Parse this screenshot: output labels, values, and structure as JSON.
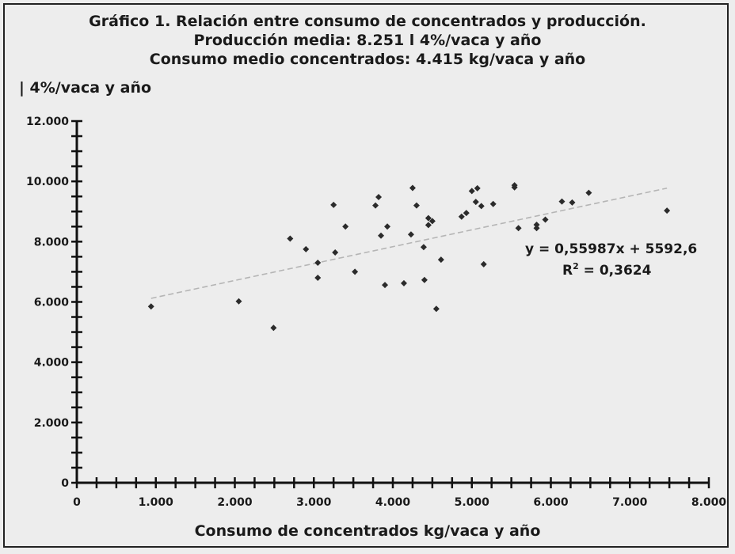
{
  "chart_data": {
    "type": "scatter",
    "title": [
      "Gráfico 1. Relación entre consumo de concentrados y producción.",
      "Producción media: 8.251 l 4%/vaca y año",
      "Consumo medio concentrados: 4.415 kg/vaca y año"
    ],
    "ylabel": "| 4%/vaca y año",
    "xlabel": "Consumo de concentrados kg/vaca y año",
    "xlim": [
      0,
      8000
    ],
    "ylim": [
      0,
      12000
    ],
    "x_ticks": [
      "0",
      "1.000",
      "2.000",
      "3.000",
      "4.000",
      "5.000",
      "6.000",
      "7.000",
      "8.000"
    ],
    "y_ticks": [
      "0",
      "2.000",
      "4.000",
      "6.000",
      "8.000",
      "10.000",
      "12.000"
    ],
    "grid": false,
    "series": [
      {
        "points": [
          [
            940,
            5850
          ],
          [
            2050,
            6020
          ],
          [
            2490,
            5140
          ],
          [
            2700,
            8100
          ],
          [
            2900,
            7750
          ],
          [
            3050,
            7300
          ],
          [
            3050,
            6800
          ],
          [
            3250,
            9220
          ],
          [
            3270,
            7640
          ],
          [
            3400,
            8500
          ],
          [
            3520,
            7000
          ],
          [
            3780,
            9200
          ],
          [
            3820,
            9480
          ],
          [
            3850,
            8200
          ],
          [
            3900,
            6560
          ],
          [
            3930,
            8500
          ],
          [
            4140,
            6620
          ],
          [
            4230,
            8240
          ],
          [
            4250,
            9780
          ],
          [
            4300,
            9200
          ],
          [
            4390,
            7820
          ],
          [
            4400,
            6730
          ],
          [
            4450,
            8550
          ],
          [
            4450,
            8780
          ],
          [
            4500,
            8680
          ],
          [
            4550,
            5770
          ],
          [
            4610,
            7400
          ],
          [
            4870,
            8830
          ],
          [
            4930,
            8950
          ],
          [
            5000,
            9680
          ],
          [
            5050,
            9320
          ],
          [
            5070,
            9770
          ],
          [
            5120,
            9180
          ],
          [
            5150,
            7250
          ],
          [
            5270,
            9250
          ],
          [
            5540,
            9870
          ],
          [
            5540,
            9800
          ],
          [
            5590,
            8450
          ],
          [
            5820,
            8560
          ],
          [
            5820,
            8450
          ],
          [
            5930,
            8730
          ],
          [
            6140,
            9330
          ],
          [
            6270,
            9300
          ],
          [
            6480,
            9620
          ],
          [
            7470,
            9030
          ]
        ]
      }
    ],
    "trendline": {
      "equation": "y = 0,55987x + 5592,6",
      "r2_label": "R",
      "r2_sup": "2",
      "r2_value": " = 0,3624",
      "slope": 0.55987,
      "intercept": 5592.6,
      "x_range": [
        940,
        7470
      ]
    }
  }
}
